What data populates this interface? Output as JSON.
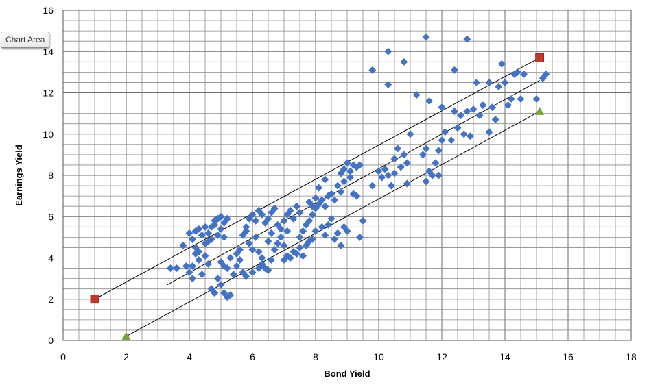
{
  "tooltip": {
    "label": "Chart Area"
  },
  "chart_data": {
    "type": "scatter",
    "xlabel": "Bond Yield",
    "ylabel": "Earnings Yield",
    "xlim": [
      0,
      18
    ],
    "ylim": [
      0,
      16
    ],
    "x_ticks": [
      0,
      2,
      4,
      6,
      8,
      10,
      12,
      14,
      16,
      18
    ],
    "y_ticks": [
      0,
      2,
      4,
      6,
      8,
      10,
      12,
      14,
      16
    ],
    "x_minor_step": 0.5,
    "y_minor_step": 0.5,
    "grid": true,
    "legend": "none",
    "colors": {
      "points": "#4472c4",
      "squares": "#c0392b",
      "triangles": "#7aa23a",
      "lines": "#000000",
      "grid": "#8c8c8c"
    },
    "series": [
      {
        "marker": "diamond",
        "color": "#4472c4",
        "points": [
          [
            3.4,
            3.5
          ],
          [
            3.6,
            3.5
          ],
          [
            3.8,
            4.6
          ],
          [
            3.9,
            3.6
          ],
          [
            4.0,
            3.3
          ],
          [
            4.1,
            3.0
          ],
          [
            4.1,
            3.6
          ],
          [
            4.2,
            4.2
          ],
          [
            4.3,
            3.9
          ],
          [
            4.4,
            3.2
          ],
          [
            4.0,
            5.2
          ],
          [
            4.1,
            4.9
          ],
          [
            4.2,
            5.3
          ],
          [
            4.3,
            5.4
          ],
          [
            4.4,
            5.1
          ],
          [
            4.5,
            4.7
          ],
          [
            4.6,
            4.8
          ],
          [
            4.7,
            5.5
          ],
          [
            4.8,
            5.8
          ],
          [
            4.9,
            5.9
          ],
          [
            5.0,
            6.0
          ],
          [
            5.1,
            5.7
          ],
          [
            5.2,
            5.9
          ],
          [
            4.5,
            5.5
          ],
          [
            4.6,
            5.2
          ],
          [
            4.7,
            4.9
          ],
          [
            4.8,
            5.6
          ],
          [
            4.9,
            5.1
          ],
          [
            5.0,
            5.4
          ],
          [
            5.1,
            5.0
          ],
          [
            4.2,
            4.5
          ],
          [
            4.3,
            4.3
          ],
          [
            4.5,
            4.1
          ],
          [
            4.6,
            3.7
          ],
          [
            4.7,
            2.5
          ],
          [
            4.8,
            2.3
          ],
          [
            4.9,
            3.0
          ],
          [
            5.0,
            2.7
          ],
          [
            5.1,
            2.3
          ],
          [
            5.2,
            2.1
          ],
          [
            5.3,
            2.2
          ],
          [
            5.0,
            3.8
          ],
          [
            5.1,
            3.6
          ],
          [
            5.2,
            3.5
          ],
          [
            5.3,
            4.0
          ],
          [
            5.4,
            3.2
          ],
          [
            5.5,
            3.6
          ],
          [
            5.6,
            3.9
          ],
          [
            5.7,
            3.3
          ],
          [
            5.8,
            3.1
          ],
          [
            5.5,
            4.2
          ],
          [
            5.6,
            4.4
          ],
          [
            5.7,
            5.1
          ],
          [
            5.8,
            5.3
          ],
          [
            5.9,
            4.7
          ],
          [
            6.0,
            4.4
          ],
          [
            6.1,
            5.0
          ],
          [
            6.2,
            4.3
          ],
          [
            6.3,
            4.0
          ],
          [
            6.4,
            3.5
          ],
          [
            5.8,
            5.5
          ],
          [
            5.9,
            5.9
          ],
          [
            6.0,
            6.1
          ],
          [
            6.1,
            5.8
          ],
          [
            6.2,
            6.3
          ],
          [
            6.3,
            6.1
          ],
          [
            6.4,
            5.7
          ],
          [
            6.5,
            5.9
          ],
          [
            6.6,
            6.2
          ],
          [
            6.7,
            6.4
          ],
          [
            6.0,
            3.3
          ],
          [
            6.2,
            3.5
          ],
          [
            6.3,
            3.7
          ],
          [
            6.5,
            3.4
          ],
          [
            6.6,
            3.9
          ],
          [
            6.7,
            4.4
          ],
          [
            6.8,
            4.7
          ],
          [
            6.9,
            5.0
          ],
          [
            7.0,
            4.6
          ],
          [
            7.1,
            5.3
          ],
          [
            6.5,
            4.8
          ],
          [
            6.6,
            5.2
          ],
          [
            6.8,
            5.6
          ],
          [
            6.9,
            5.4
          ],
          [
            7.0,
            5.8
          ],
          [
            7.1,
            6.1
          ],
          [
            7.2,
            6.3
          ],
          [
            7.3,
            5.9
          ],
          [
            7.4,
            6.5
          ],
          [
            7.5,
            6.2
          ],
          [
            7.0,
            3.9
          ],
          [
            7.1,
            4.1
          ],
          [
            7.2,
            4.0
          ],
          [
            7.3,
            4.3
          ],
          [
            7.4,
            4.2
          ],
          [
            7.5,
            4.5
          ],
          [
            7.6,
            4.1
          ],
          [
            7.7,
            4.6
          ],
          [
            7.8,
            4.8
          ],
          [
            7.9,
            4.9
          ],
          [
            7.5,
            5.0
          ],
          [
            7.6,
            5.3
          ],
          [
            7.7,
            5.6
          ],
          [
            7.8,
            5.8
          ],
          [
            7.9,
            6.1
          ],
          [
            8.0,
            6.4
          ],
          [
            8.1,
            6.6
          ],
          [
            8.2,
            6.8
          ],
          [
            8.3,
            6.5
          ],
          [
            8.4,
            7.0
          ],
          [
            7.8,
            6.7
          ],
          [
            7.9,
            6.5
          ],
          [
            8.0,
            6.9
          ],
          [
            8.1,
            7.4
          ],
          [
            8.3,
            7.8
          ],
          [
            8.5,
            7.1
          ],
          [
            8.6,
            6.8
          ],
          [
            8.7,
            7.5
          ],
          [
            8.8,
            7.2
          ],
          [
            8.9,
            7.7
          ],
          [
            8.0,
            5.3
          ],
          [
            8.2,
            5.5
          ],
          [
            8.3,
            5.1
          ],
          [
            8.4,
            5.6
          ],
          [
            8.5,
            5.9
          ],
          [
            8.6,
            4.9
          ],
          [
            8.7,
            5.2
          ],
          [
            8.8,
            4.6
          ],
          [
            8.9,
            5.5
          ],
          [
            9.0,
            5.3
          ],
          [
            8.8,
            8.1
          ],
          [
            8.9,
            8.3
          ],
          [
            9.0,
            8.6
          ],
          [
            9.1,
            8.2
          ],
          [
            9.2,
            8.5
          ],
          [
            9.3,
            8.4
          ],
          [
            9.4,
            8.5
          ],
          [
            9.1,
            7.9
          ],
          [
            9.2,
            7.1
          ],
          [
            9.3,
            7.0
          ],
          [
            9.5,
            5.8
          ],
          [
            9.4,
            5.0
          ],
          [
            9.8,
            7.5
          ],
          [
            10.0,
            8.2
          ],
          [
            10.1,
            7.9
          ],
          [
            10.2,
            8.3
          ],
          [
            10.3,
            8.0
          ],
          [
            10.4,
            7.5
          ],
          [
            10.5,
            8.8
          ],
          [
            10.6,
            9.3
          ],
          [
            10.5,
            8.1
          ],
          [
            10.7,
            8.4
          ],
          [
            10.8,
            9.0
          ],
          [
            10.9,
            8.6
          ],
          [
            10.9,
            7.6
          ],
          [
            11.0,
            10.0
          ],
          [
            11.5,
            7.7
          ],
          [
            11.4,
            9.0
          ],
          [
            11.5,
            9.3
          ],
          [
            11.6,
            8.2
          ],
          [
            11.7,
            8.0
          ],
          [
            11.8,
            8.6
          ],
          [
            11.9,
            9.2
          ],
          [
            11.9,
            8.0
          ],
          [
            12.0,
            9.7
          ],
          [
            12.1,
            10.1
          ],
          [
            12.3,
            9.7
          ],
          [
            12.4,
            11.1
          ],
          [
            12.5,
            10.3
          ],
          [
            12.7,
            10.0
          ],
          [
            12.8,
            11.1
          ],
          [
            12.6,
            10.9
          ],
          [
            12.9,
            9.9
          ],
          [
            13.0,
            11.2
          ],
          [
            13.1,
            12.5
          ],
          [
            13.2,
            10.9
          ],
          [
            13.3,
            11.4
          ],
          [
            13.5,
            10.1
          ],
          [
            13.5,
            12.5
          ],
          [
            13.6,
            11.3
          ],
          [
            13.7,
            10.7
          ],
          [
            13.8,
            12.3
          ],
          [
            13.9,
            13.4
          ],
          [
            14.0,
            12.5
          ],
          [
            14.1,
            11.4
          ],
          [
            14.2,
            11.7
          ],
          [
            14.3,
            12.9
          ],
          [
            14.4,
            13.0
          ],
          [
            14.6,
            12.9
          ],
          [
            14.5,
            11.7
          ],
          [
            11.2,
            11.9
          ],
          [
            11.6,
            11.6
          ],
          [
            11.5,
            14.7
          ],
          [
            12.0,
            11.3
          ],
          [
            12.4,
            13.1
          ],
          [
            12.8,
            14.6
          ],
          [
            10.8,
            13.5
          ],
          [
            10.3,
            14.0
          ],
          [
            10.3,
            12.4
          ],
          [
            9.8,
            13.1
          ],
          [
            15.0,
            11.7
          ],
          [
            15.2,
            12.7
          ],
          [
            15.3,
            12.9
          ]
        ]
      },
      {
        "marker": "square",
        "color": "#c0392b",
        "points": [
          [
            1.0,
            2.0
          ],
          [
            15.1,
            13.7
          ]
        ]
      },
      {
        "marker": "triangle",
        "color": "#7aa23a",
        "points": [
          [
            2.0,
            0.2
          ],
          [
            15.1,
            11.1
          ]
        ]
      }
    ],
    "lines": [
      {
        "from": [
          1.0,
          2.0
        ],
        "to": [
          15.1,
          13.7
        ]
      },
      {
        "from": [
          3.3,
          2.7
        ],
        "to": [
          15.1,
          12.6
        ]
      },
      {
        "from": [
          2.0,
          0.2
        ],
        "to": [
          15.1,
          11.1
        ]
      }
    ]
  }
}
